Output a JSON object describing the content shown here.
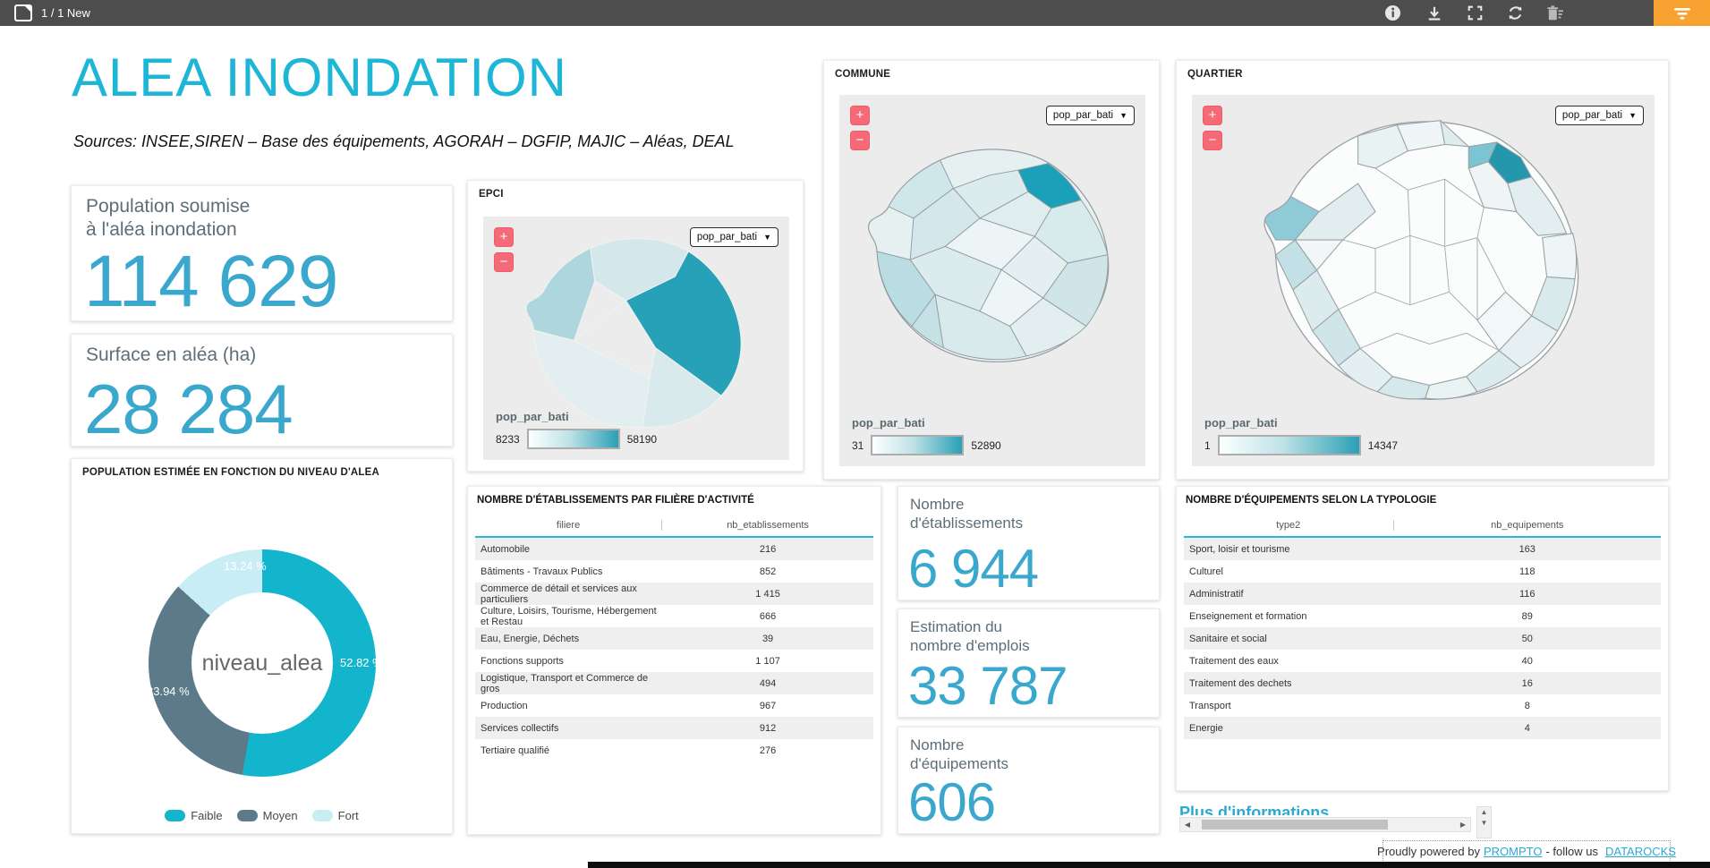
{
  "topbar": {
    "pager": "1 / 1 New"
  },
  "header": {
    "title": "ALEA INONDATION",
    "sources": "Sources: INSEE,SIREN – Base des équipements, AGORAH – DGFIP, MAJIC – Aléas, DEAL"
  },
  "kpi": {
    "population": {
      "label": "Population soumise\nà l'aléa inondation",
      "value": "114 629"
    },
    "surface": {
      "label": "Surface en aléa (ha)",
      "value": "28 284"
    },
    "etablissements": {
      "label": "Nombre\nd'établissements",
      "value": "6 944"
    },
    "emplois": {
      "label": "Estimation du\nnombre d'emplois",
      "value": "33 787"
    },
    "equipements": {
      "label": "Nombre\nd'équipements",
      "value": "606"
    }
  },
  "donut": {
    "title": "POPULATION ESTIMÉE EN FONCTION DU NIVEAU D'ALEA",
    "center_label": "niveau_alea",
    "chart_data": {
      "type": "pie",
      "categories": [
        "Faible",
        "Moyen",
        "Fort"
      ],
      "values": [
        52.82,
        33.94,
        13.24
      ],
      "unit": "%",
      "labels": [
        "52.82 %",
        "33.94 %",
        "13.24 %"
      ],
      "colors": [
        "#12b5cb",
        "#5d7a8a",
        "#c9edf4"
      ],
      "legend_position": "bottom"
    }
  },
  "maps": {
    "epci": {
      "title": "EPCI",
      "dropdown": "pop_par_bati",
      "legend_label": "pop_par_bati",
      "min": "8233",
      "max": "58190",
      "zoom_in": "+",
      "zoom_out": "−"
    },
    "commune": {
      "title": "COMMUNE",
      "dropdown": "pop_par_bati",
      "legend_label": "pop_par_bati",
      "min": "31",
      "max": "52890",
      "zoom_in": "+",
      "zoom_out": "−"
    },
    "quartier": {
      "title": "QUARTIER",
      "dropdown": "pop_par_bati",
      "legend_label": "pop_par_bati",
      "min": "1",
      "max": "14347",
      "zoom_in": "+",
      "zoom_out": "−"
    }
  },
  "tables": {
    "filieres": {
      "title": "NOMBRE D'ÉTABLISSEMENTS PAR FILIÈRE D'ACTIVITÉ",
      "columns": [
        "filiere",
        "nb_etablissements"
      ],
      "rows": [
        [
          "Automobile",
          "216"
        ],
        [
          "Bâtiments - Travaux Publics",
          "852"
        ],
        [
          "Commerce de détail et services aux particuliers",
          "1 415"
        ],
        [
          "Culture, Loisirs, Tourisme, Hébergement et Restau",
          "666"
        ],
        [
          "Eau, Energie, Déchets",
          "39"
        ],
        [
          "Fonctions supports",
          "1 107"
        ],
        [
          "Logistique, Transport et Commerce de gros",
          "494"
        ],
        [
          "Production",
          "967"
        ],
        [
          "Services collectifs",
          "912"
        ],
        [
          "Tertiaire qualifié",
          "276"
        ]
      ]
    },
    "equipements": {
      "title": "NOMBRE D'ÉQUIPEMENTS SELON LA TYPOLOGIE",
      "columns": [
        "type2",
        "nb_equipements"
      ],
      "rows": [
        [
          "Sport, loisir et tourisme",
          "163"
        ],
        [
          "Culturel",
          "118"
        ],
        [
          "Administratif",
          "116"
        ],
        [
          "Enseignement et formation",
          "89"
        ],
        [
          "Sanitaire et social",
          "50"
        ],
        [
          "Traitement des eaux",
          "40"
        ],
        [
          "Traitement des dechets",
          "16"
        ],
        [
          "Transport",
          "8"
        ],
        [
          "Energie",
          "4"
        ]
      ]
    }
  },
  "misc": {
    "partial_text": "Plus d'informations"
  },
  "footer": {
    "prefix": "Proudly powered by",
    "prompto": "PROMPTO",
    "middle": "- follow us",
    "datarocks": "DATAROCKS"
  },
  "colors": {
    "title_accent": "#1db6d6",
    "kpi_value": "#3aa7cd",
    "topbar": "#4d4d4d",
    "filter_button": "#f7a231",
    "zoom_button": "#f56a77",
    "map_dark_teal": "#2aa0b6",
    "table_header_underline": "#2ab5d4"
  }
}
